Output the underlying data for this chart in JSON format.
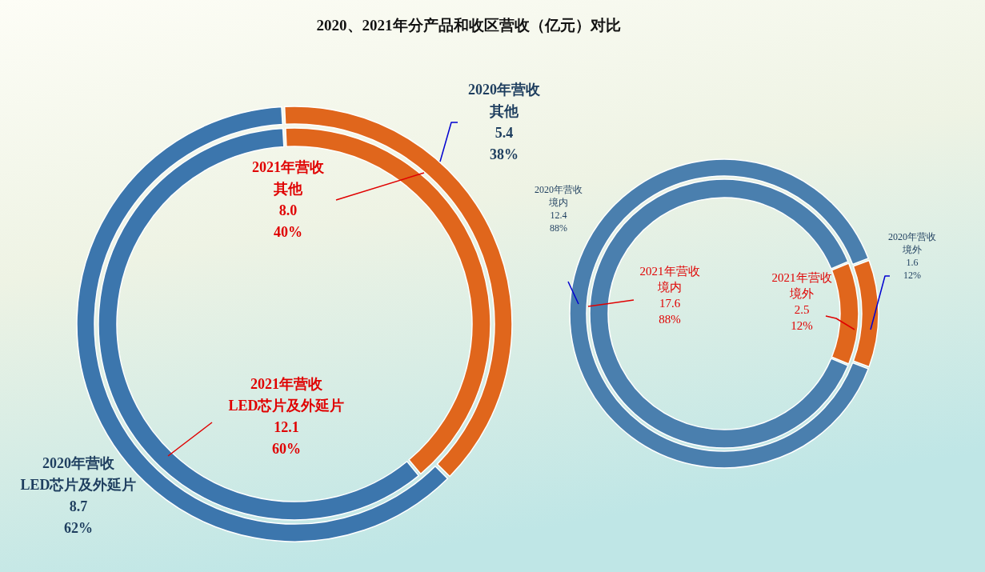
{
  "chart_data": [
    {
      "type": "donut",
      "title": "2020、2021年分产品和收区营收（亿元）对比",
      "categories": [
        "其他",
        "LED芯片及外延片"
      ],
      "series": [
        {
          "name": "2020年营收",
          "colors": [
            "#e0661c",
            "#3c76ad"
          ],
          "values": [
            5.4,
            8.7
          ],
          "value_labels": [
            "5.4\n38%",
            "8.7\n62%"
          ]
        },
        {
          "name": "2021年营收",
          "colors": [
            "#e0661c",
            "#3c76ad"
          ],
          "values": [
            8.0,
            12.1
          ],
          "value_labels": [
            "8.0\n40%",
            "12.1\n60%"
          ]
        }
      ]
    },
    {
      "type": "donut",
      "categories": [
        "境内",
        "境外"
      ],
      "series": [
        {
          "name": "2020年营收",
          "colors": [
            "#4a7fae",
            "#e0661c"
          ],
          "values": [
            12.4,
            1.6
          ],
          "value_labels": [
            "12.4\n88%",
            "1.6\n12%"
          ]
        },
        {
          "name": "2021年营收",
          "colors": [
            "#4a7fae",
            "#e0661c"
          ],
          "values": [
            17.6,
            2.5
          ],
          "value_labels": [
            "17.6\n88%",
            "2.5\n12%"
          ]
        }
      ]
    }
  ]
}
